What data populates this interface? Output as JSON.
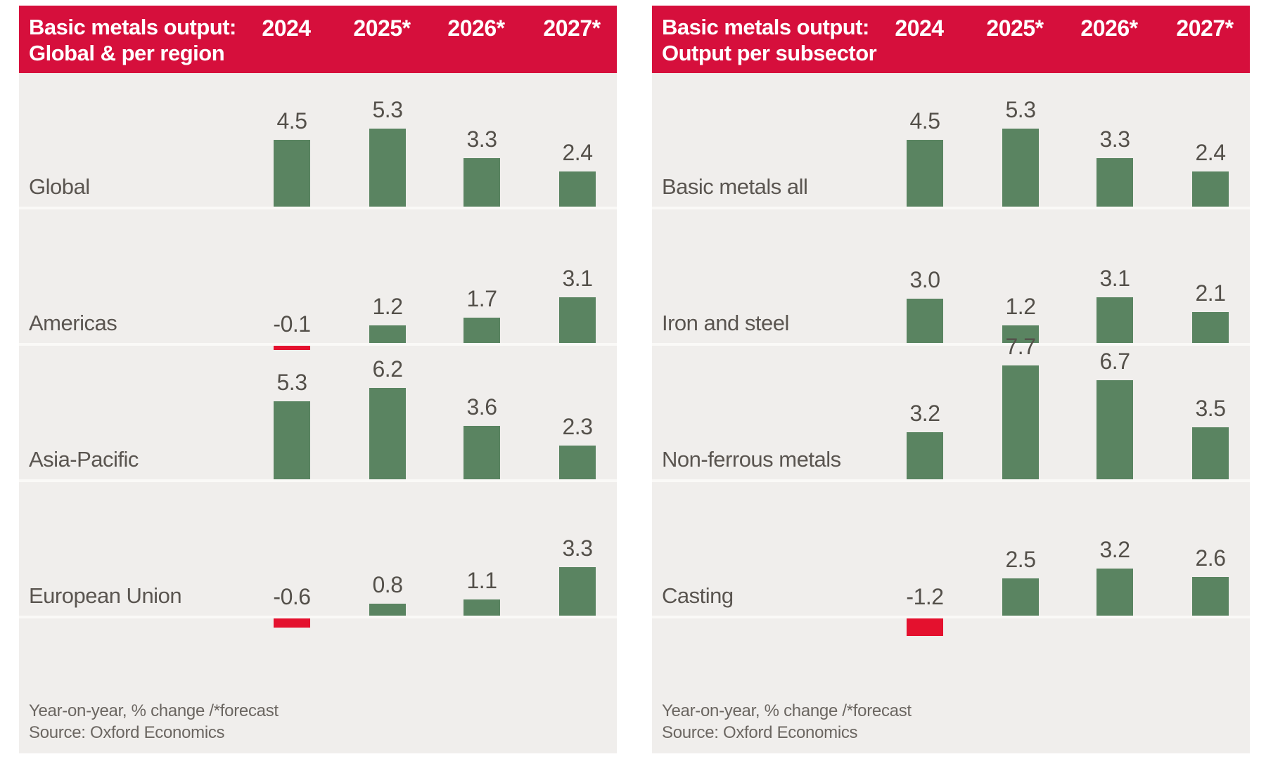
{
  "style": {
    "header_red": "#d60f3c",
    "negative_bar_red": "#e4112e",
    "positive_bar_green": "#5a8461",
    "panel_bg": "#f0eeec",
    "separator": "#faf9f7",
    "value_text": "#54504a",
    "label_text": "#5a5550",
    "footnote_text": "#6b6661",
    "header_text": "#ffffff"
  },
  "chart_data": [
    {
      "type": "bar",
      "title_line1": "Basic metals output:",
      "title_line2": "Global & per region",
      "columns": [
        "2024",
        "2025*",
        "2026*",
        "2027*"
      ],
      "categories": [
        "Global",
        "Americas",
        "Asia-Pacific",
        "European Union"
      ],
      "series": [
        {
          "name": "Global",
          "values": [
            4.5,
            5.3,
            3.3,
            2.4
          ]
        },
        {
          "name": "Americas",
          "values": [
            -0.1,
            1.2,
            1.7,
            3.1
          ]
        },
        {
          "name": "Asia-Pacific",
          "values": [
            5.3,
            6.2,
            3.6,
            2.3
          ]
        },
        {
          "name": "European Union",
          "values": [
            -0.6,
            0.8,
            1.1,
            3.3
          ]
        }
      ],
      "value_unit": "year-on-year % change",
      "legend_position": "none",
      "grid": false,
      "footnote_line1": "Year-on-year, % change /*forecast",
      "footnote_line2": "Source: Oxford Economics"
    },
    {
      "type": "bar",
      "title_line1": "Basic metals output:",
      "title_line2": "Output per subsector",
      "columns": [
        "2024",
        "2025*",
        "2026*",
        "2027*"
      ],
      "categories": [
        "Basic metals all",
        "Iron and steel",
        "Non-ferrous metals",
        "Casting"
      ],
      "series": [
        {
          "name": "Basic metals all",
          "values": [
            4.5,
            5.3,
            3.3,
            2.4
          ]
        },
        {
          "name": "Iron and steel",
          "values": [
            3.0,
            1.2,
            3.1,
            2.1
          ]
        },
        {
          "name": "Non-ferrous metals",
          "values": [
            3.2,
            7.7,
            6.7,
            3.5
          ]
        },
        {
          "name": "Casting",
          "values": [
            -1.2,
            2.5,
            3.2,
            2.6
          ]
        }
      ],
      "value_unit": "year-on-year % change",
      "legend_position": "none",
      "grid": false,
      "footnote_line1": "Year-on-year, % change /*forecast",
      "footnote_line2": "Source: Oxford Economics"
    }
  ]
}
